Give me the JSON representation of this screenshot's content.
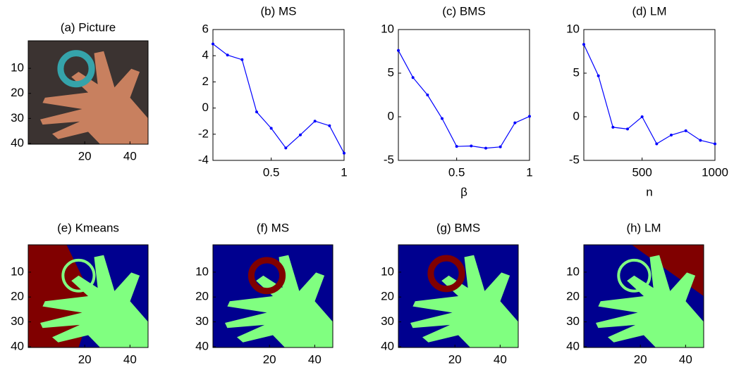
{
  "chart_data": [
    {
      "type": "image",
      "title": "(a) Picture",
      "xlim": [
        -5,
        48
      ],
      "ylim": [
        -1,
        40.3
      ],
      "xticks": [
        20,
        40
      ],
      "yticks": [
        10,
        20,
        30,
        40
      ]
    },
    {
      "type": "line",
      "title": "(b)  MS",
      "x": [
        0.1,
        0.2,
        0.3,
        0.4,
        0.5,
        0.6,
        0.7,
        0.8,
        0.9,
        1.0
      ],
      "series": [
        {
          "color": "#0000ff",
          "values": [
            4.9,
            4.05,
            3.7,
            -0.3,
            -1.55,
            -3.05,
            -2.05,
            -1,
            -1.35,
            -3.45
          ]
        }
      ],
      "xlim": [
        0.1,
        1
      ],
      "ylim": [
        -4,
        6
      ],
      "xticks": [
        0.5,
        1
      ],
      "yticks": [
        -4,
        -2,
        0,
        2,
        4,
        6
      ]
    },
    {
      "type": "line",
      "title": "(c)  BMS",
      "x_label": "β",
      "x": [
        0.1,
        0.2,
        0.3,
        0.4,
        0.5,
        0.6,
        0.7,
        0.8,
        0.9,
        1.0
      ],
      "series": [
        {
          "color": "#0000ff",
          "values": [
            7.6,
            4.5,
            2.5,
            -0.2,
            -3.4,
            -3.35,
            -3.6,
            -3.45,
            -0.7,
            0.05
          ]
        }
      ],
      "xlim": [
        0.1,
        1
      ],
      "ylim": [
        -5,
        10
      ],
      "xticks": [
        0.5,
        1
      ],
      "yticks": [
        -5,
        0,
        5,
        10
      ]
    },
    {
      "type": "line",
      "title": "(d)  LM",
      "x_label": "n",
      "x": [
        100,
        200,
        300,
        400,
        500,
        600,
        700,
        800,
        900,
        1000
      ],
      "series": [
        {
          "color": "#0000ff",
          "values": [
            8.3,
            4.7,
            -1.2,
            -1.4,
            0,
            -3.1,
            -2.1,
            -1.6,
            -2.7,
            -3.1
          ]
        }
      ],
      "xlim": [
        100,
        1000
      ],
      "ylim": [
        -5,
        10
      ],
      "xticks": [
        500,
        1000
      ],
      "yticks": [
        -5,
        0,
        5,
        10
      ]
    },
    {
      "type": "image",
      "title": "(e)  Kmeans",
      "xlim": [
        -5,
        48
      ],
      "ylim": [
        -1,
        40.3
      ],
      "xticks": [
        20,
        40
      ],
      "yticks": [
        10,
        20,
        30,
        40
      ]
    },
    {
      "type": "image",
      "title": "(f)  MS",
      "xlim": [
        -5,
        48
      ],
      "ylim": [
        -1,
        40.3
      ],
      "xticks": [
        20,
        40
      ],
      "yticks": [
        10,
        20,
        30,
        40
      ]
    },
    {
      "type": "image",
      "title": "(g)  BMS",
      "xlim": [
        -5,
        48
      ],
      "ylim": [
        -1,
        40.3
      ],
      "xticks": [
        20,
        40
      ],
      "yticks": [
        10,
        20,
        30,
        40
      ]
    },
    {
      "type": "image",
      "title": "(h)  LM",
      "xlim": [
        -5,
        48
      ],
      "ylim": [
        -1,
        40.3
      ],
      "xticks": [
        20,
        40
      ],
      "yticks": [
        10,
        20,
        30,
        40
      ]
    }
  ]
}
